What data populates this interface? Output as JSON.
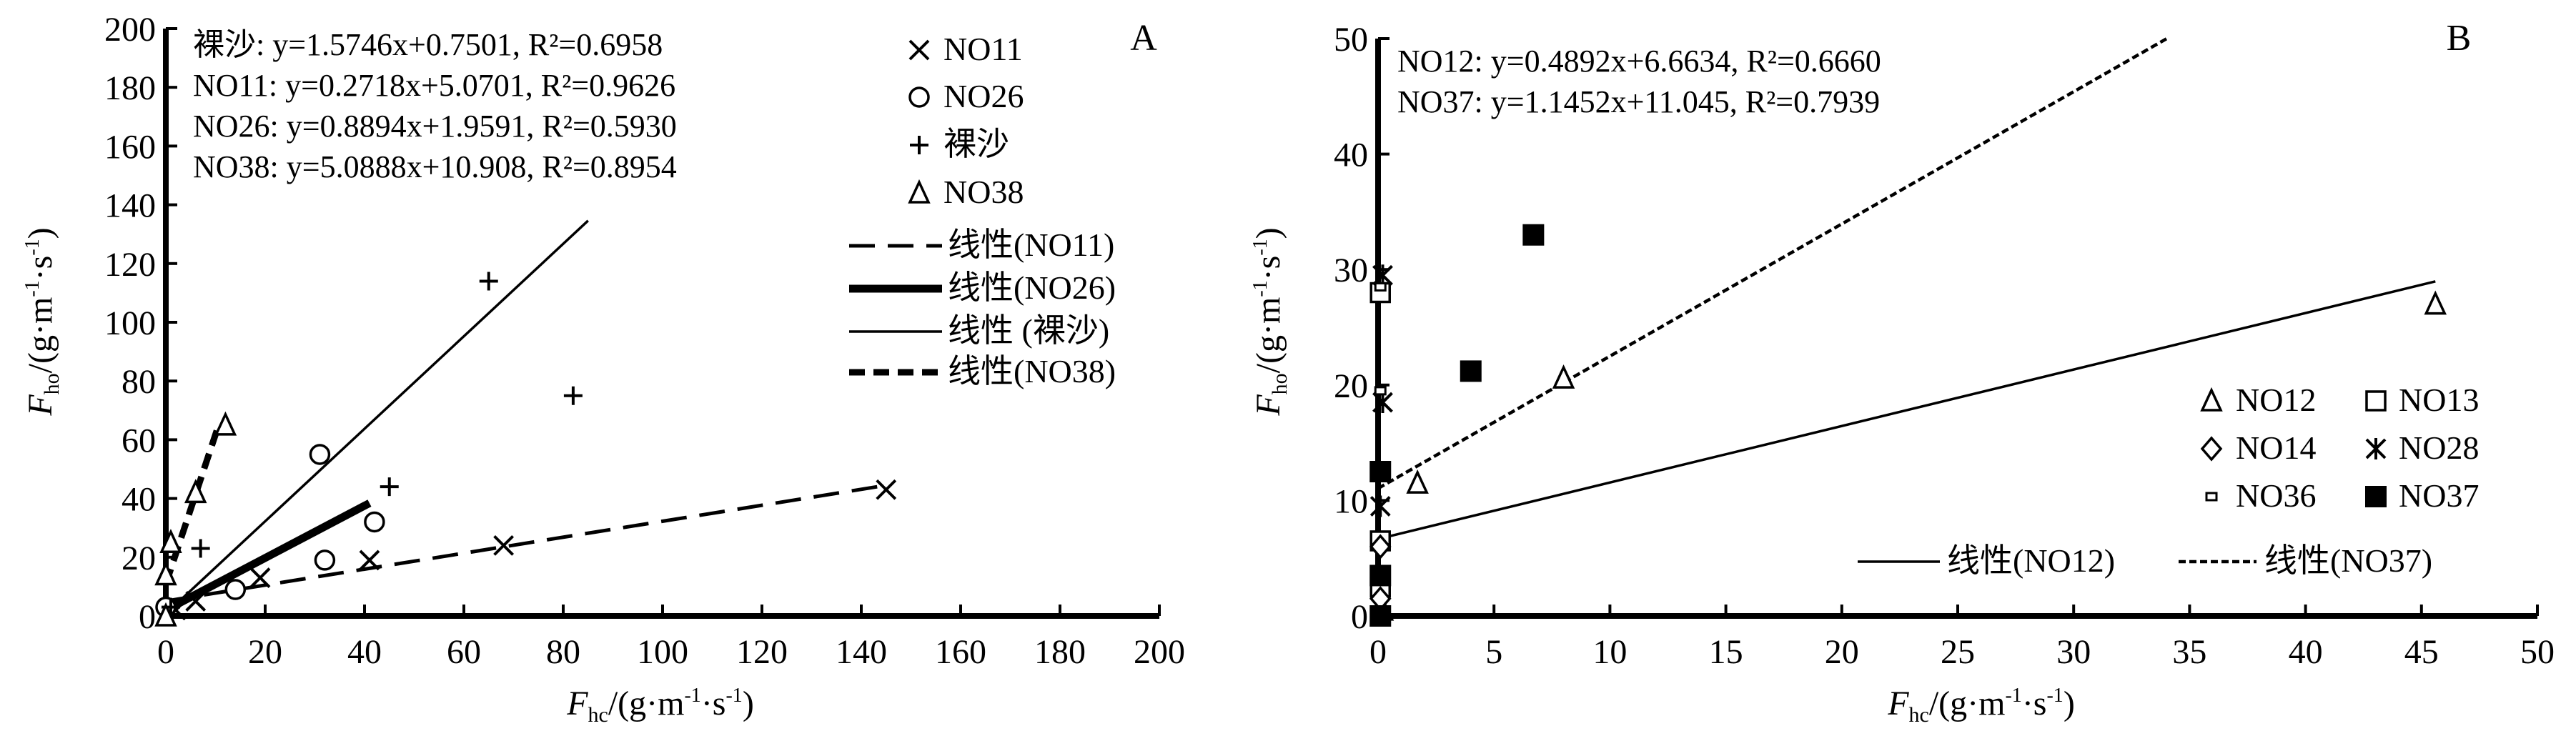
{
  "chart_data": [
    {
      "type": "scatter",
      "panel_label": "A",
      "xlabel": {
        "symbol": "F",
        "sub": "hc",
        "pre": "/(g·m",
        "e1": "-1",
        "mid": "·s",
        "e2": "-1",
        "post": ")"
      },
      "ylabel": {
        "symbol": "F",
        "sub": "ho",
        "pre": "/(g·m",
        "e1": "-1",
        "mid": "·s",
        "e2": "-1",
        "post": ")"
      },
      "xlim": [
        0,
        200
      ],
      "ylim": [
        0,
        200
      ],
      "xticks": [
        "0",
        "20",
        "40",
        "60",
        "80",
        "100",
        "120",
        "140",
        "160",
        "180",
        "200"
      ],
      "yticks": [
        "0",
        "20",
        "40",
        "60",
        "80",
        "100",
        "120",
        "140",
        "160",
        "180",
        "200"
      ],
      "grid": false,
      "equations": [
        "裸沙: y=1.5746x+0.7501, R²=0.6958",
        "NO11: y=0.2718x+5.0701, R²=0.9626",
        "NO26: y=0.8894x+1.9591, R²=0.5930",
        "NO38: y=5.0888x+10.908, R²=0.8954"
      ],
      "series": [
        {
          "name": "NO11",
          "marker": "x",
          "points": [
            [
              2,
              2
            ],
            [
              6,
              5
            ],
            [
              19,
              13
            ],
            [
              41,
              19
            ],
            [
              68,
              24
            ],
            [
              145,
              43
            ]
          ]
        },
        {
          "name": "NO26",
          "marker": "circle",
          "points": [
            [
              0,
              3
            ],
            [
              14,
              9
            ],
            [
              31,
              55
            ],
            [
              32,
              19
            ],
            [
              42,
              32
            ]
          ]
        },
        {
          "name": "裸沙",
          "marker": "plus",
          "points": [
            [
              1,
              3
            ],
            [
              7,
              23
            ],
            [
              45,
              44
            ],
            [
              65,
              114
            ],
            [
              82,
              75
            ]
          ]
        },
        {
          "name": "NO38",
          "marker": "triangle",
          "points": [
            [
              0,
              0
            ],
            [
              0,
              14
            ],
            [
              1,
              25
            ],
            [
              6,
              42
            ],
            [
              12,
              65
            ]
          ]
        }
      ],
      "fits": [
        {
          "name": "线性(NO11)",
          "slope": 0.2718,
          "intercept": 5.0701,
          "xrange": [
            0,
            145
          ],
          "style": "dashed"
        },
        {
          "name": "线性(NO26)",
          "slope": 0.8894,
          "intercept": 1.9591,
          "xrange": [
            0,
            41
          ],
          "style": "thick"
        },
        {
          "name": "线性 (裸沙)",
          "slope": 1.5746,
          "intercept": 0.7501,
          "xrange": [
            0,
            85
          ],
          "style": "thin"
        },
        {
          "name": "线性(NO38)",
          "slope": 5.0888,
          "intercept": 10.908,
          "xrange": [
            0,
            10.5
          ],
          "style": "thick-dashed"
        }
      ],
      "legend_position": "top-right"
    },
    {
      "type": "scatter",
      "panel_label": "B",
      "xlabel": {
        "symbol": "F",
        "sub": "hc",
        "pre": "/(g·m",
        "e1": "-1",
        "mid": "·s",
        "e2": "-1",
        "post": ")"
      },
      "ylabel": {
        "symbol": "F",
        "sub": "ho",
        "pre": "/(g·m",
        "e1": "-1",
        "mid": "·s",
        "e2": "-1",
        "post": ")"
      },
      "xlim": [
        0,
        50
      ],
      "ylim": [
        0,
        50
      ],
      "xticks": [
        "0",
        "5",
        "10",
        "15",
        "20",
        "25",
        "30",
        "35",
        "40",
        "45",
        "50"
      ],
      "yticks": [
        "0",
        "10",
        "20",
        "30",
        "40",
        "50"
      ],
      "grid": false,
      "equations": [
        "NO12: y=0.4892x+6.6634, R²=0.6660",
        "NO37: y=1.1452x+11.045, R²=0.7939"
      ],
      "series": [
        {
          "name": "NO12",
          "marker": "triangle",
          "points": [
            [
              0.2,
              0.5
            ],
            [
              1.7,
              11.5
            ],
            [
              8,
              20.6
            ],
            [
              45.6,
              27
            ]
          ]
        },
        {
          "name": "NO13",
          "marker": "square",
          "points": [
            [
              0.1,
              2.5
            ],
            [
              0.1,
              6.5
            ],
            [
              0.1,
              28
            ]
          ]
        },
        {
          "name": "NO14",
          "marker": "diamond",
          "points": [
            [
              0.1,
              1.5
            ],
            [
              0.1,
              6
            ]
          ]
        },
        {
          "name": "NO28",
          "marker": "star",
          "points": [
            [
              0.1,
              9.5
            ],
            [
              0.2,
              18.5
            ],
            [
              0.2,
              29.5
            ]
          ]
        },
        {
          "name": "NO36",
          "marker": "small-rect",
          "points": [
            [
              0.1,
              19.5
            ],
            [
              0.1,
              28.5
            ]
          ]
        },
        {
          "name": "NO37",
          "marker": "filled-square",
          "points": [
            [
              0.1,
              0
            ],
            [
              0.1,
              3.5
            ],
            [
              0.1,
              12.5
            ],
            [
              4,
              21.2
            ],
            [
              6.7,
              33
            ]
          ]
        }
      ],
      "fits": [
        {
          "name": "线性(NO12)",
          "slope": 0.4892,
          "intercept": 6.6634,
          "xrange": [
            0,
            45.6
          ],
          "style": "thin"
        },
        {
          "name": "线性(NO37)",
          "slope": 1.1452,
          "intercept": 11.045,
          "xrange": [
            0,
            34
          ],
          "style": "dotted"
        }
      ],
      "legend_position": "bottom-right"
    }
  ]
}
